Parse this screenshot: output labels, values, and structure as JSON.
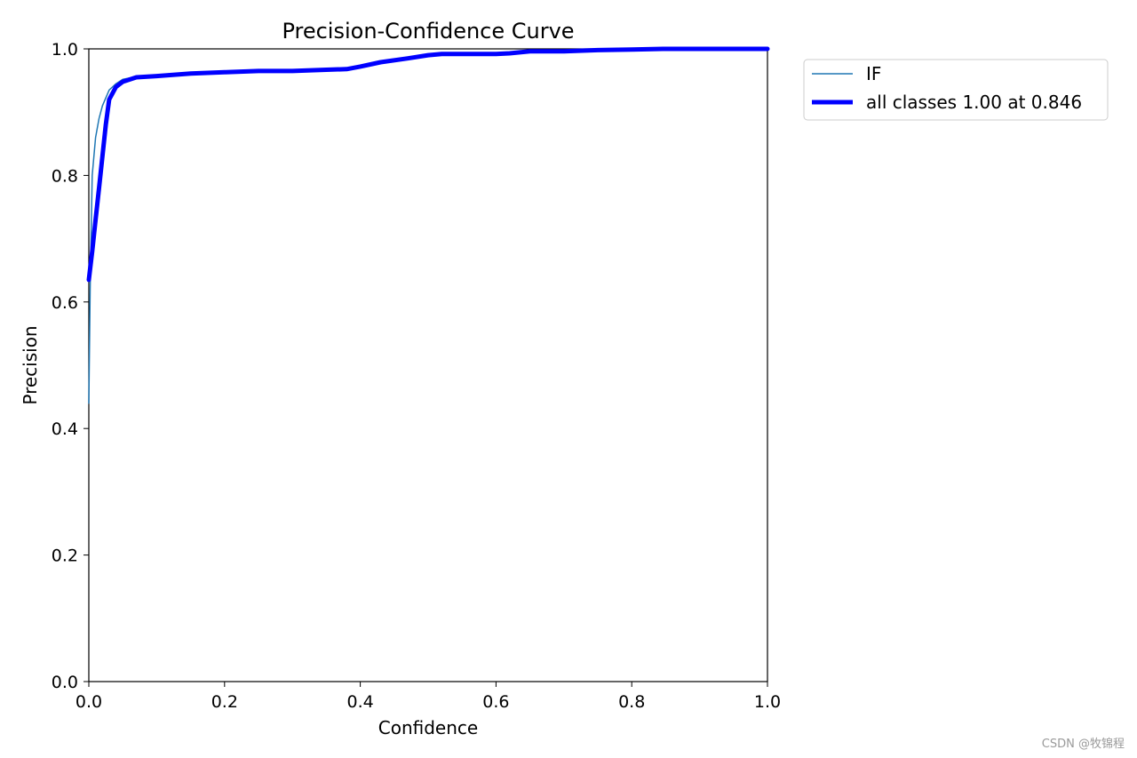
{
  "chart_data": {
    "type": "line",
    "title": "Precision-Confidence Curve",
    "xlabel": "Confidence",
    "ylabel": "Precision",
    "xlim": [
      0,
      1
    ],
    "ylim": [
      0,
      1
    ],
    "xticks": [
      "0.0",
      "0.2",
      "0.4",
      "0.6",
      "0.8",
      "1.0"
    ],
    "yticks": [
      "0.0",
      "0.2",
      "0.4",
      "0.6",
      "0.8",
      "1.0"
    ],
    "grid": false,
    "legend_position": "outside-top-right",
    "series": [
      {
        "name": "IF",
        "color": "#1f77b4",
        "line": "thin",
        "x": [
          0.0,
          0.002,
          0.005,
          0.01,
          0.015,
          0.02,
          0.03,
          0.04,
          0.05,
          0.07,
          0.1,
          0.15,
          0.2,
          0.25,
          0.3,
          0.35,
          0.38,
          0.4,
          0.43,
          0.47,
          0.5,
          0.52,
          0.55,
          0.6,
          0.62,
          0.65,
          0.7,
          0.75,
          0.8,
          0.846,
          0.9,
          0.95,
          1.0
        ],
        "y": [
          0.44,
          0.62,
          0.8,
          0.86,
          0.89,
          0.91,
          0.935,
          0.945,
          0.952,
          0.956,
          0.958,
          0.962,
          0.964,
          0.966,
          0.966,
          0.967,
          0.968,
          0.972,
          0.979,
          0.985,
          0.99,
          0.992,
          0.992,
          0.992,
          0.993,
          0.996,
          0.996,
          0.998,
          0.999,
          1.0,
          1.0,
          1.0,
          1.0
        ]
      },
      {
        "name": "all classes 1.00 at 0.846",
        "color": "#0000ff",
        "line": "thick",
        "x": [
          0.0,
          0.005,
          0.01,
          0.015,
          0.02,
          0.025,
          0.03,
          0.04,
          0.05,
          0.07,
          0.1,
          0.15,
          0.2,
          0.25,
          0.3,
          0.35,
          0.38,
          0.4,
          0.43,
          0.47,
          0.5,
          0.52,
          0.55,
          0.6,
          0.62,
          0.65,
          0.7,
          0.75,
          0.8,
          0.846,
          0.9,
          0.95,
          1.0
        ],
        "y": [
          0.635,
          0.68,
          0.73,
          0.78,
          0.83,
          0.88,
          0.92,
          0.94,
          0.948,
          0.955,
          0.957,
          0.961,
          0.963,
          0.965,
          0.965,
          0.967,
          0.968,
          0.972,
          0.979,
          0.985,
          0.99,
          0.992,
          0.992,
          0.992,
          0.993,
          0.996,
          0.996,
          0.998,
          0.999,
          1.0,
          1.0,
          1.0,
          1.0
        ]
      }
    ]
  },
  "watermark": "CSDN @牧锦程"
}
